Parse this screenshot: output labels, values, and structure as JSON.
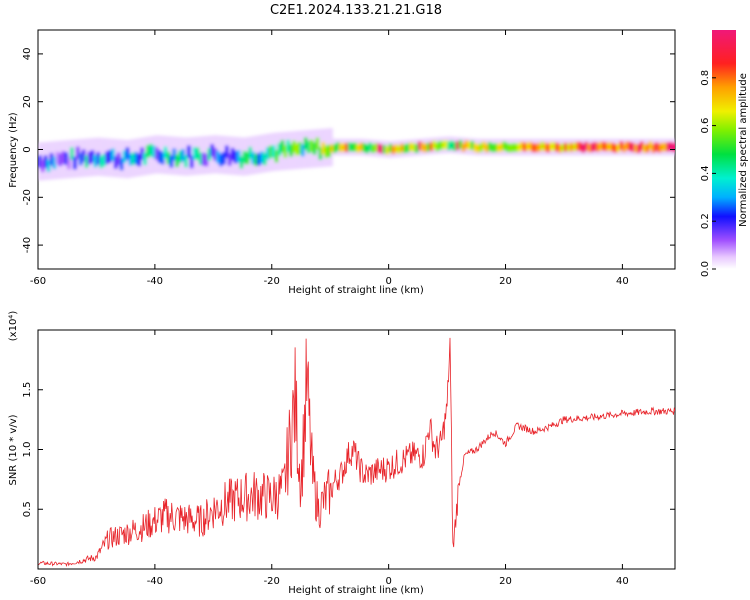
{
  "title": "C2E1.2024.133.21.21.G18",
  "chart_data": [
    {
      "type": "heatmap",
      "xlabel": "Height of straight line (km)",
      "ylabel": "Frequency (Hz)",
      "xlim": [
        -60,
        49
      ],
      "ylim": [
        -50,
        50
      ],
      "xticks": [
        -60,
        -40,
        -20,
        0,
        20,
        40
      ],
      "yticks": [
        40,
        20,
        0,
        -20,
        -40
      ],
      "colorbar": {
        "label": "Normalized spectral amplitude",
        "range": [
          0,
          1
        ],
        "ticks": [
          0.0,
          0.2,
          0.4,
          0.6,
          0.8
        ]
      },
      "ridge": {
        "description_free_trace": true,
        "x": [
          -60,
          -55,
          -50,
          -45,
          -40,
          -35,
          -30,
          -25,
          -20,
          -15,
          -10,
          -5,
          0,
          5,
          10,
          15,
          20,
          30,
          40,
          49
        ],
        "center_hz": [
          -5,
          -4,
          -3,
          -4,
          -2,
          -3,
          -2,
          -3,
          -1,
          0,
          1,
          1,
          0,
          1,
          2,
          1,
          1,
          1,
          1,
          1
        ],
        "amplitude": [
          0.2,
          0.25,
          0.25,
          0.3,
          0.3,
          0.3,
          0.3,
          0.35,
          0.4,
          0.45,
          0.55,
          0.6,
          0.6,
          0.6,
          0.6,
          0.65,
          0.7,
          0.8,
          0.85,
          0.9
        ]
      }
    },
    {
      "type": "line",
      "xlabel": "Height of straight line (km)",
      "ylabel": "SNR (10 * v/v)",
      "y_multiplier": "(x10⁴)",
      "xlim": [
        -60,
        49
      ],
      "ylim": [
        0,
        2.0
      ],
      "xticks": [
        -60,
        -40,
        -20,
        0,
        20,
        40
      ],
      "yticks": [
        0.5,
        1.0,
        1.5
      ],
      "ytick_labels": [
        "0.5",
        "1.0",
        "1.5"
      ],
      "series": [
        {
          "color": "#e8242a",
          "x": [
            -60,
            -55,
            -50,
            -48,
            -45,
            -42,
            -40,
            -38,
            -35,
            -32,
            -30,
            -28,
            -25,
            -23,
            -20,
            -18,
            -16,
            -15,
            -14,
            -13,
            -12,
            -10,
            -9,
            -8,
            -7,
            -6,
            -5,
            -4,
            -2,
            0,
            2,
            4,
            6,
            7,
            8,
            9,
            10,
            10.5,
            11,
            12,
            13,
            15,
            16,
            18,
            20,
            22,
            25,
            28,
            30,
            35,
            40,
            45,
            49
          ],
          "y": [
            0.05,
            0.04,
            0.1,
            0.25,
            0.3,
            0.35,
            0.4,
            0.45,
            0.42,
            0.4,
            0.5,
            0.55,
            0.6,
            0.62,
            0.6,
            0.65,
            1.4,
            0.7,
            1.55,
            0.75,
            0.5,
            0.65,
            0.75,
            0.8,
            0.95,
            1.0,
            0.85,
            0.78,
            0.82,
            0.85,
            0.9,
            0.95,
            0.95,
            1.2,
            1.0,
            1.05,
            1.35,
            1.9,
            0.15,
            0.7,
            0.95,
            1.0,
            1.05,
            1.15,
            1.05,
            1.2,
            1.15,
            1.2,
            1.25,
            1.27,
            1.3,
            1.32,
            1.32
          ]
        }
      ]
    }
  ],
  "colors": {
    "line": "#e8242a"
  }
}
